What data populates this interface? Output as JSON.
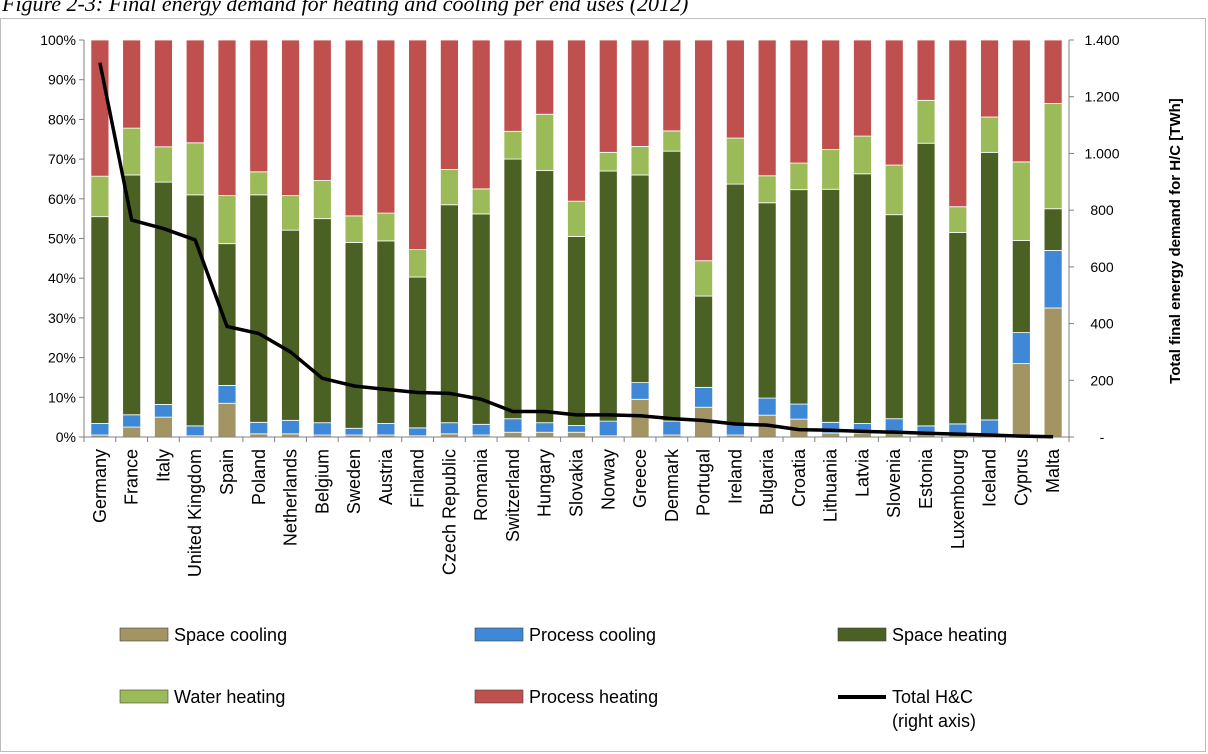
{
  "figure_caption": "Figure 2-3: Final energy demand for heating and cooling per end uses (2012)",
  "chart_data": {
    "type": "bar",
    "stacked": true,
    "categories": [
      "Germany",
      "France",
      "Italy",
      "United Kingdom",
      "Spain",
      "Poland",
      "Netherlands",
      "Belgium",
      "Sweden",
      "Austria",
      "Finland",
      "Czech Republic",
      "Romania",
      "Switzerland",
      "Hungary",
      "Slovakia",
      "Norway",
      "Greece",
      "Denmark",
      "Portugal",
      "Ireland",
      "Bulgaria",
      "Croatia",
      "Lithuania",
      "Latvia",
      "Slovenia",
      "Estonia",
      "Luxembourg",
      "Iceland",
      "Cyprus",
      "Malta"
    ],
    "ylim": [
      0,
      100
    ],
    "y_ticks": [
      "0%",
      "10%",
      "20%",
      "30%",
      "40%",
      "50%",
      "60%",
      "70%",
      "80%",
      "90%",
      "100%"
    ],
    "y2lim": [
      0,
      1400
    ],
    "y2_ticks": [
      "-",
      "200",
      "400",
      "600",
      "800",
      "1.000",
      "1.200",
      "1.400"
    ],
    "y2label": "Total final energy demand for H/C [TWh]",
    "grid": false,
    "legend_position": "bottom",
    "series": [
      {
        "name": "Space cooling",
        "color": "#a39464",
        "values": [
          0.5,
          2.5,
          5,
          0.3,
          8.5,
          0.8,
          0.8,
          0.5,
          0.5,
          0.5,
          0.3,
          0.8,
          0.5,
          1.2,
          1.2,
          1.2,
          0.3,
          9.5,
          0.5,
          7.5,
          0.5,
          5.5,
          4.5,
          1,
          1,
          1.2,
          1,
          0.5,
          0.5,
          18.5,
          32.5
        ]
      },
      {
        "name": "Process cooling",
        "color": "#3f88d8",
        "values": [
          2.9,
          3.1,
          3.2,
          2.5,
          4.5,
          2.9,
          3.4,
          3.1,
          1.7,
          2.9,
          2.0,
          2.8,
          2.7,
          3.4,
          2.4,
          1.7,
          3.7,
          4.2,
          3.5,
          5.0,
          3.0,
          4.3,
          3.8,
          2.7,
          2.4,
          3.4,
          1.8,
          2.8,
          3.8,
          7.8,
          14.5
        ]
      },
      {
        "name": "Space heating",
        "color": "#4b6124",
        "values": [
          52.1,
          60.4,
          56,
          58.2,
          35.7,
          57.3,
          47.9,
          51.4,
          46.8,
          46,
          38,
          54.9,
          53,
          65.4,
          63.5,
          47.6,
          63,
          52.3,
          68,
          23,
          60.2,
          49.2,
          54,
          58.7,
          62.9,
          51.4,
          71.2,
          48.2,
          67.4,
          23.2,
          10.5
        ]
      },
      {
        "name": "Water heating",
        "color": "#9bbb59",
        "values": [
          10.2,
          11.8,
          8.9,
          13.1,
          12.1,
          5.8,
          8.7,
          9.6,
          6.7,
          7,
          6.9,
          8.9,
          6.3,
          7,
          14.2,
          8.9,
          4.7,
          7.2,
          5.1,
          8.9,
          11.6,
          6.8,
          6.7,
          10,
          9.5,
          12.5,
          10.8,
          6.5,
          8.9,
          19.8,
          26.5
        ]
      },
      {
        "name": "Process heating",
        "color": "#c0504d",
        "values": [
          34.3,
          22.2,
          26.9,
          25.9,
          39.2,
          33.2,
          39.2,
          35.4,
          44.3,
          43.6,
          52.8,
          32.6,
          37.5,
          23,
          18.7,
          40.6,
          28.3,
          26.8,
          22.9,
          55.6,
          24.7,
          34.2,
          31,
          27.6,
          24.2,
          31.5,
          15.2,
          42,
          19.4,
          30.7,
          16
        ]
      },
      {
        "name": "Total H&C (right axis)",
        "type": "line",
        "axis": "right",
        "color": "#000000",
        "values": [
          1320,
          765,
          735,
          695,
          390,
          365,
          300,
          207,
          180,
          168,
          157,
          154,
          133,
          90,
          90,
          78,
          78,
          75,
          65,
          58,
          46,
          42,
          26,
          24,
          20,
          17,
          13,
          10,
          7,
          3,
          1
        ]
      }
    ],
    "legend": [
      {
        "label": "Space cooling",
        "kind": "box"
      },
      {
        "label": "Process cooling",
        "kind": "box"
      },
      {
        "label": "Space heating",
        "kind": "box"
      },
      {
        "label": "Water heating",
        "kind": "box"
      },
      {
        "label": "Process heating",
        "kind": "box"
      },
      {
        "label": "Total H&C",
        "label2": "(right axis)",
        "kind": "line"
      }
    ]
  }
}
